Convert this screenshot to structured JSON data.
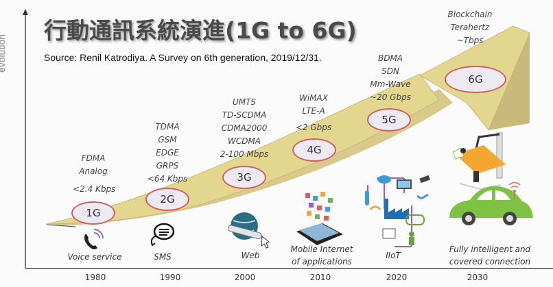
{
  "title": "行動通訊系統演進(1G to 6G)",
  "source": "Source: Renil Katrodiya. A Survey on 6th generation, 2019/12/31.",
  "y_axis_label": "evolution",
  "colors": {
    "arrow_top": "#e3d790",
    "arrow_side": "#c9b97a",
    "ellipse_border": "#d06060",
    "ellipse_fill": "#edeaf2"
  },
  "generations": [
    {
      "label": "1G",
      "tech": [
        "FDMA",
        "Analog",
        "<2.4 Kbps"
      ],
      "service": [
        "Voice service"
      ],
      "year": "1980",
      "icon": "phone-icon"
    },
    {
      "label": "2G",
      "tech": [
        "TDMA",
        "GSM",
        "EDGE",
        "GRPS",
        "<64 Kbps"
      ],
      "service": [
        "SMS"
      ],
      "year": "1990",
      "icon": "chat-bubble-icon"
    },
    {
      "label": "3G",
      "tech": [
        "UMTS",
        "TD-SCDMA",
        "CDMA2000",
        "WCDMA",
        "2-100 Mbps"
      ],
      "service": [
        "Web"
      ],
      "year": "2000",
      "icon": "globe-icon"
    },
    {
      "label": "4G",
      "tech": [
        "WiMAX",
        "LTE-A",
        "<2 Gbps"
      ],
      "service": [
        "Mobile Internet",
        "of applications"
      ],
      "year": "2010",
      "icon": "smartphone-apps-icon"
    },
    {
      "label": "5G",
      "tech": [
        "BDMA",
        "SDN",
        "Mm-Wave",
        "~20 Gbps"
      ],
      "service": [
        "IIoT"
      ],
      "year": "2020",
      "icon": "iiot-icon"
    },
    {
      "label": "6G",
      "tech": [
        "Blockchain",
        "Terahertz",
        "~Tbps"
      ],
      "service": [
        "Fully intelligent and",
        "covered connection"
      ],
      "year": "2030",
      "icon": "smart-car-icon"
    }
  ]
}
